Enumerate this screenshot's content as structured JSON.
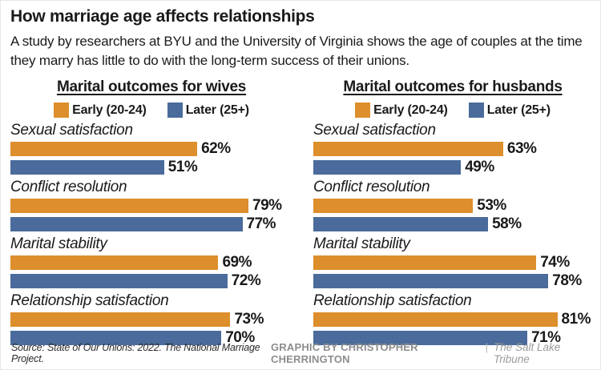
{
  "header": {
    "title": "How marriage age affects relationships",
    "subtitle": "A study by researchers at BYU and the University of Virginia shows the age of couples at the time they marry has little to do with the long-term success of their unions."
  },
  "colors": {
    "early": "#dd8e2d",
    "later": "#4a6b9b",
    "text": "#1a1a1a",
    "credit_gray": "#8d8d8d"
  },
  "chart_data": [
    {
      "type": "bar",
      "orientation": "horizontal",
      "title": "Marital outcomes for wives",
      "categories": [
        "Sexual satisfaction",
        "Conflict resolution",
        "Marital stability",
        "Relationship satisfaction"
      ],
      "series": [
        {
          "name": "Early (20-24)",
          "color": "#dd8e2d",
          "values": [
            62,
            79,
            69,
            73
          ]
        },
        {
          "name": "Later (25+)",
          "color": "#4a6b9b",
          "values": [
            51,
            77,
            72,
            70
          ]
        }
      ],
      "value_suffix": "%",
      "xlim": [
        0,
        100
      ],
      "grid": false,
      "legend_position": "top"
    },
    {
      "type": "bar",
      "orientation": "horizontal",
      "title": "Marital outcomes for husbands",
      "categories": [
        "Sexual satisfaction",
        "Conflict resolution",
        "Marital stability",
        "Relationship satisfaction"
      ],
      "series": [
        {
          "name": "Early (20-24)",
          "color": "#dd8e2d",
          "values": [
            63,
            53,
            74,
            81
          ]
        },
        {
          "name": "Later (25+)",
          "color": "#4a6b9b",
          "values": [
            49,
            58,
            78,
            71
          ]
        }
      ],
      "value_suffix": "%",
      "xlim": [
        0,
        100
      ],
      "grid": false,
      "legend_position": "top"
    }
  ],
  "footer": {
    "source": "Source: State of Our Unions: 2022. The National Marriage Project.",
    "credit": "GRAPHIC BY CHRISTOPHER CHERRINGTON",
    "divider": "|",
    "publication": "The Salt Lake Tribune"
  }
}
